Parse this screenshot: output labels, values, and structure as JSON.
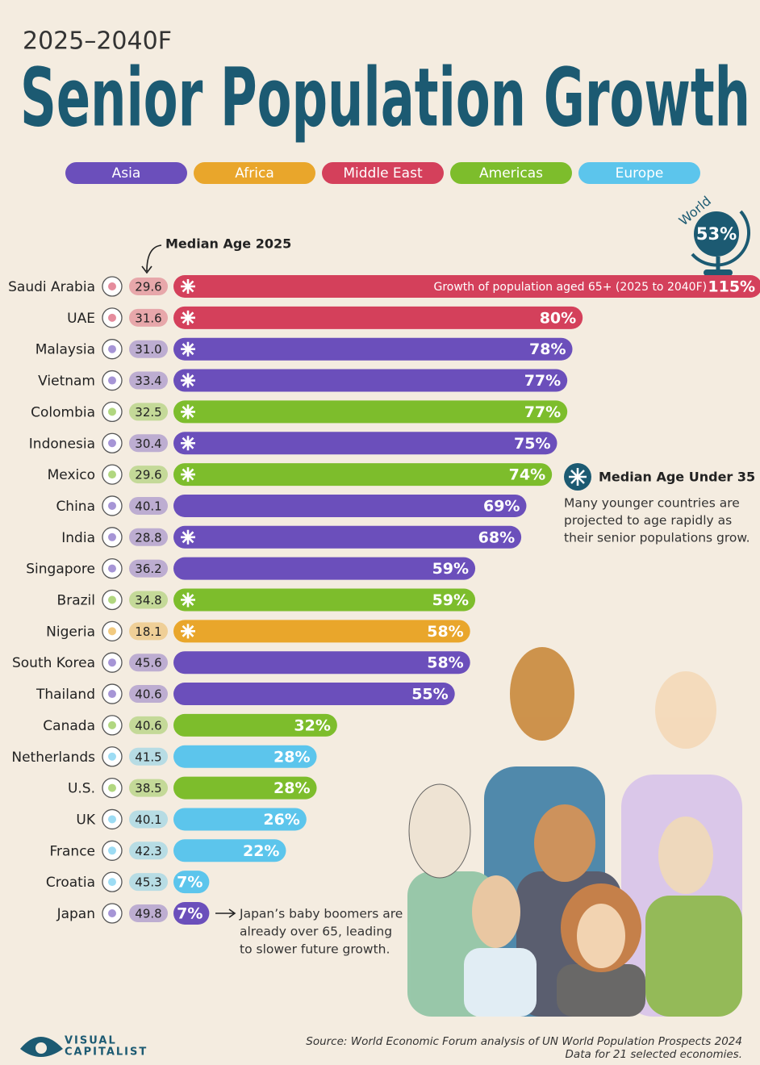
{
  "chart_data": {
    "type": "bar",
    "subtitle": "2025–2040F",
    "title": "Senior Population Growth",
    "regions": [
      {
        "name": "Asia",
        "color": "#6b4fbb"
      },
      {
        "name": "Africa",
        "color": "#e9a62b"
      },
      {
        "name": "Middle East",
        "color": "#d4405b"
      },
      {
        "name": "Americas",
        "color": "#7dbd2c"
      },
      {
        "name": "Europe",
        "color": "#5cc5ec"
      }
    ],
    "world": {
      "label": "World",
      "value": 53,
      "value_label": "53%"
    },
    "bar_annotation": "Growth of population aged 65+ (2025 to 2040F)",
    "categories": [
      "Saudi Arabia",
      "UAE",
      "Malaysia",
      "Vietnam",
      "Colombia",
      "Indonesia",
      "Mexico",
      "China",
      "India",
      "Singapore",
      "Brazil",
      "Nigeria",
      "South Korea",
      "Thailand",
      "Canada",
      "Netherlands",
      "U.S.",
      "UK",
      "France",
      "Croatia",
      "Japan"
    ],
    "region_of": [
      "Middle East",
      "Middle East",
      "Asia",
      "Asia",
      "Americas",
      "Asia",
      "Americas",
      "Asia",
      "Asia",
      "Asia",
      "Americas",
      "Africa",
      "Asia",
      "Asia",
      "Americas",
      "Europe",
      "Americas",
      "Europe",
      "Europe",
      "Europe",
      "Asia"
    ],
    "values": [
      115,
      80,
      78,
      77,
      77,
      75,
      74,
      69,
      68,
      59,
      59,
      58,
      58,
      55,
      32,
      28,
      28,
      26,
      22,
      7,
      7
    ],
    "value_labels": [
      "115%",
      "80%",
      "78%",
      "77%",
      "77%",
      "75%",
      "74%",
      "69%",
      "68%",
      "59%",
      "59%",
      "58%",
      "58%",
      "55%",
      "32%",
      "28%",
      "28%",
      "26%",
      "22%",
      "7%",
      "7%"
    ],
    "under_35": [
      true,
      true,
      true,
      true,
      true,
      true,
      true,
      false,
      true,
      false,
      true,
      true,
      false,
      false,
      false,
      false,
      false,
      false,
      false,
      false,
      false
    ],
    "median_age": {
      "title": "Median Age 2025",
      "values": [
        29.6,
        31.6,
        31.0,
        33.4,
        32.5,
        30.4,
        29.6,
        40.1,
        28.8,
        36.2,
        34.8,
        18.1,
        45.6,
        40.6,
        40.6,
        41.5,
        38.5,
        40.1,
        42.3,
        45.3,
        49.8
      ],
      "value_labels": [
        "29.6",
        "31.6",
        "31.0",
        "33.4",
        "32.5",
        "30.4",
        "29.6",
        "40.1",
        "28.8",
        "36.2",
        "34.8",
        "18.1",
        "45.6",
        "40.6",
        "40.6",
        "41.5",
        "38.5",
        "40.1",
        "42.3",
        "45.3",
        "49.8"
      ]
    },
    "note": {
      "title": "Median Age Under 35",
      "lines": [
        "Many younger countries are",
        "projected to age rapidly as",
        "their senior populations grow."
      ]
    },
    "japan_note": [
      "Japan’s baby boomers are",
      "already over 65, leading",
      "to slower future growth."
    ],
    "source": [
      "Source: World Economic Forum analysis of UN World Population Prospects 2024",
      "Data for 21 selected economies."
    ],
    "brand": [
      "VISUAL",
      "CAPITALIST"
    ]
  }
}
